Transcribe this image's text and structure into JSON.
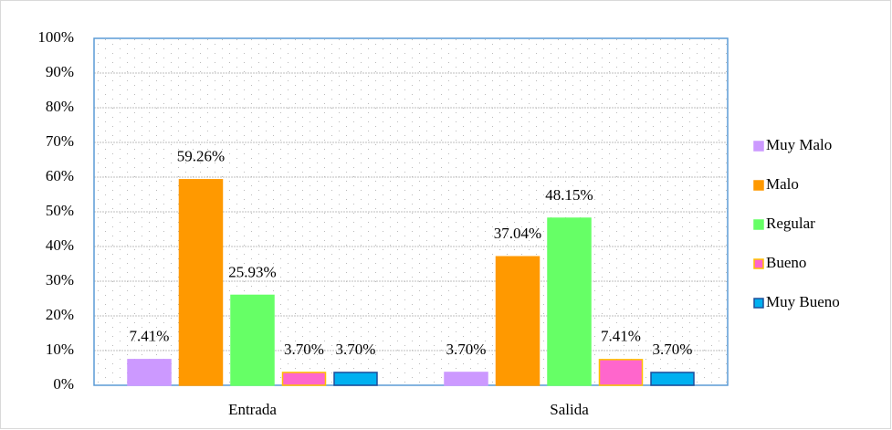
{
  "chart_data": {
    "type": "bar",
    "categories": [
      "Entrada",
      "Salida"
    ],
    "series": [
      {
        "name": "Muy Malo",
        "color": "#cc99ff",
        "edgecolor": "#cc99ff",
        "values": [
          7.41,
          3.7
        ],
        "value_labels": [
          "7.41%",
          "3.70%"
        ]
      },
      {
        "name": "Malo",
        "color": "#ff9900",
        "edgecolor": "#ff9900",
        "values": [
          59.26,
          37.04
        ],
        "value_labels": [
          "59.26%",
          "37.04%"
        ]
      },
      {
        "name": "Regular",
        "color": "#66ff66",
        "edgecolor": "#66ff66",
        "values": [
          25.93,
          48.15
        ],
        "value_labels": [
          "25.93%",
          "48.15%"
        ]
      },
      {
        "name": "Bueno",
        "color": "#ff66cc",
        "edgecolor": "#ffc000",
        "values": [
          3.7,
          7.41
        ],
        "value_labels": [
          "3.70%",
          "7.41%"
        ]
      },
      {
        "name": "Muy Bueno",
        "color": "#00b0f0",
        "edgecolor": "#1f4e9a",
        "values": [
          3.7,
          3.7
        ],
        "value_labels": [
          "3.70%",
          "3.70%"
        ]
      }
    ],
    "ylim": [
      0,
      100
    ],
    "yticks": [
      {
        "value": 0,
        "label": "0%"
      },
      {
        "value": 10,
        "label": "10%"
      },
      {
        "value": 20,
        "label": "20%"
      },
      {
        "value": 30,
        "label": "30%"
      },
      {
        "value": 40,
        "label": "40%"
      },
      {
        "value": 50,
        "label": "50%"
      },
      {
        "value": 60,
        "label": "60%"
      },
      {
        "value": 70,
        "label": "70%"
      },
      {
        "value": 80,
        "label": "80%"
      },
      {
        "value": 90,
        "label": "90%"
      },
      {
        "value": 100,
        "label": "100%"
      }
    ],
    "grid": true,
    "legend": "right"
  }
}
